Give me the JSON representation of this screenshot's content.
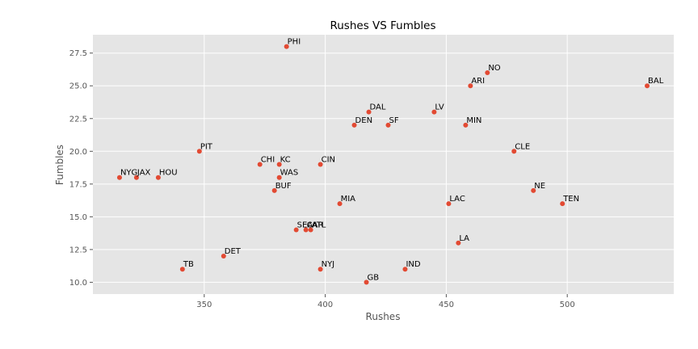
{
  "chart_data": {
    "type": "scatter",
    "title": "Rushes VS Fumbles",
    "xlabel": "Rushes",
    "ylabel": "Fumbles",
    "xlim": [
      304,
      544
    ],
    "ylim": [
      9.1,
      28.9
    ],
    "xticks": [
      350,
      400,
      450,
      500
    ],
    "yticks": [
      10.0,
      12.5,
      15.0,
      17.5,
      20.0,
      22.5,
      25.0,
      27.5
    ],
    "xtick_labels": [
      "350",
      "400",
      "450",
      "500"
    ],
    "ytick_labels": [
      "10.0",
      "12.5",
      "15.0",
      "17.5",
      "20.0",
      "22.5",
      "25.0",
      "27.5"
    ],
    "grid": true,
    "marker_color": "#E24A33",
    "background_color": "#E5E5E5",
    "grid_color": "#FFFFFF",
    "points": [
      {
        "label": "PHI",
        "x": 384,
        "y": 28
      },
      {
        "label": "NO",
        "x": 467,
        "y": 26
      },
      {
        "label": "ARI",
        "x": 460,
        "y": 25
      },
      {
        "label": "BAL",
        "x": 533,
        "y": 25
      },
      {
        "label": "DAL",
        "x": 418,
        "y": 23
      },
      {
        "label": "LV",
        "x": 445,
        "y": 23
      },
      {
        "label": "DEN",
        "x": 412,
        "y": 22
      },
      {
        "label": "SF",
        "x": 426,
        "y": 22
      },
      {
        "label": "MIN",
        "x": 458,
        "y": 22
      },
      {
        "label": "PIT",
        "x": 348,
        "y": 20
      },
      {
        "label": "CLE",
        "x": 478,
        "y": 20
      },
      {
        "label": "CHI",
        "x": 373,
        "y": 19
      },
      {
        "label": "KC",
        "x": 381,
        "y": 19
      },
      {
        "label": "CIN",
        "x": 398,
        "y": 19
      },
      {
        "label": "NYG",
        "x": 315,
        "y": 18
      },
      {
        "label": "JAX",
        "x": 322,
        "y": 18
      },
      {
        "label": "HOU",
        "x": 331,
        "y": 18
      },
      {
        "label": "WAS",
        "x": 381,
        "y": 18
      },
      {
        "label": "BUF",
        "x": 379,
        "y": 17
      },
      {
        "label": "NE",
        "x": 486,
        "y": 17
      },
      {
        "label": "MIA",
        "x": 406,
        "y": 16
      },
      {
        "label": "LAC",
        "x": 451,
        "y": 16
      },
      {
        "label": "TEN",
        "x": 498,
        "y": 16
      },
      {
        "label": "SEA",
        "x": 388,
        "y": 14
      },
      {
        "label": "CAR",
        "x": 392,
        "y": 14
      },
      {
        "label": "ATL",
        "x": 394,
        "y": 14
      },
      {
        "label": "LA",
        "x": 455,
        "y": 13
      },
      {
        "label": "DET",
        "x": 358,
        "y": 12
      },
      {
        "label": "TB",
        "x": 341,
        "y": 11
      },
      {
        "label": "NYJ",
        "x": 398,
        "y": 11
      },
      {
        "label": "IND",
        "x": 433,
        "y": 11
      },
      {
        "label": "GB",
        "x": 417,
        "y": 10
      }
    ]
  }
}
